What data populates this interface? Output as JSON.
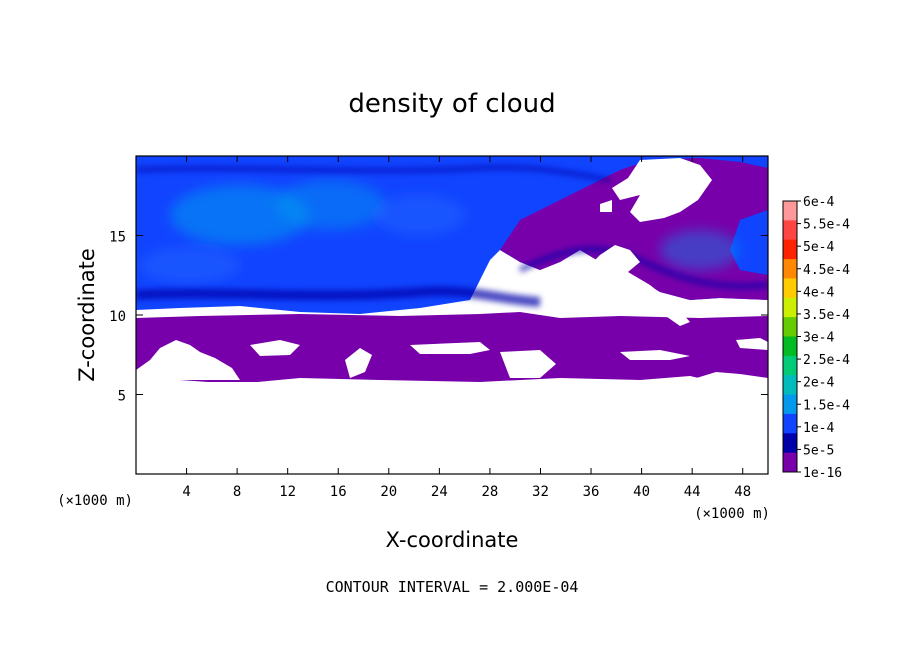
{
  "chart_data": {
    "type": "heatmap",
    "title": "density of cloud",
    "xlabel": "X-coordinate",
    "ylabel": "Z-coordinate",
    "x_unit": "(×1000 m)",
    "y_unit": "(×1000 m)",
    "xlim": [
      0,
      50
    ],
    "ylim": [
      0,
      20
    ],
    "x_ticks": [
      4,
      8,
      12,
      16,
      20,
      24,
      28,
      32,
      36,
      40,
      44,
      48
    ],
    "y_ticks": [
      5,
      10,
      15
    ],
    "footnote": "CONTOUR INTERVAL = 2.000E-04",
    "colorbar": {
      "labels": [
        "6e-4",
        "5.5e-4",
        "5e-4",
        "4.5e-4",
        "4e-4",
        "3.5e-4",
        "3e-4",
        "2.5e-4",
        "2e-4",
        "1.5e-4",
        "1e-4",
        "5e-5",
        "1e-16"
      ],
      "colors": [
        "#ff9999",
        "#ff4444",
        "#ff2200",
        "#ff8800",
        "#ffcc00",
        "#ccee00",
        "#66cc00",
        "#00bb22",
        "#00cc77",
        "#00bbbb",
        "#0099ee",
        "#1144ff",
        "#0000aa",
        "#7700aa"
      ]
    },
    "regions": {
      "cloud_base_z": 6,
      "cloud_top_z": 19.8,
      "lower_layer_top_z": 9.8,
      "dominant_upper_level": "1e-4",
      "dominant_lower_level": "1e-16"
    }
  }
}
